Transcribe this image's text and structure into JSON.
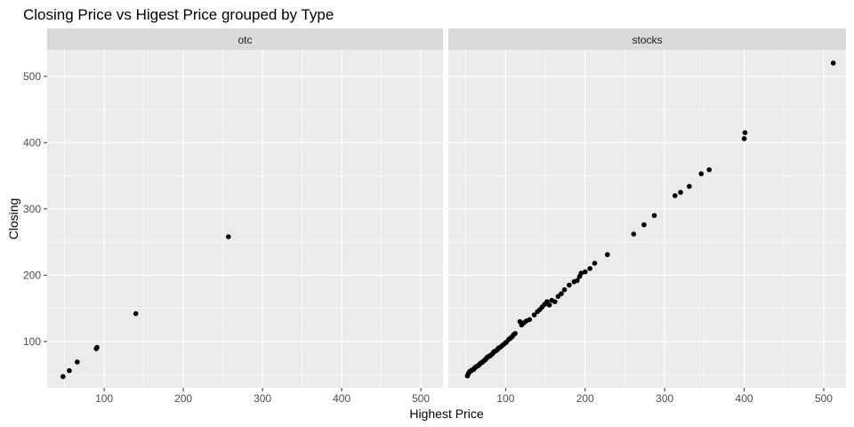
{
  "chart_data": {
    "type": "scatter",
    "title": "Closing Price  vs Higest Price grouped by Type",
    "xlabel": "Highest Price",
    "ylabel": "Closing",
    "xlim": [
      28,
      528
    ],
    "ylim": [
      30,
      540
    ],
    "x_ticks": [
      100,
      200,
      300,
      400,
      500
    ],
    "y_ticks": [
      100,
      200,
      300,
      400,
      500
    ],
    "grid": true,
    "facets": [
      {
        "name": "otc",
        "points": [
          [
            48,
            47
          ],
          [
            56,
            56
          ],
          [
            66,
            69
          ],
          [
            90,
            89
          ],
          [
            91,
            91
          ],
          [
            140,
            142
          ],
          [
            257,
            258
          ]
        ]
      },
      {
        "name": "stocks",
        "points": [
          [
            52,
            48
          ],
          [
            53,
            51
          ],
          [
            54,
            53
          ],
          [
            55,
            55
          ],
          [
            57,
            56
          ],
          [
            58,
            57
          ],
          [
            60,
            58
          ],
          [
            61,
            60
          ],
          [
            62,
            61
          ],
          [
            63,
            62
          ],
          [
            65,
            63
          ],
          [
            66,
            64
          ],
          [
            67,
            65
          ],
          [
            68,
            67
          ],
          [
            70,
            68
          ],
          [
            71,
            69
          ],
          [
            72,
            70
          ],
          [
            73,
            71
          ],
          [
            74,
            72
          ],
          [
            75,
            73
          ],
          [
            76,
            75
          ],
          [
            77,
            76
          ],
          [
            78,
            77
          ],
          [
            80,
            78
          ],
          [
            81,
            79
          ],
          [
            82,
            80
          ],
          [
            84,
            82
          ],
          [
            85,
            84
          ],
          [
            86,
            85
          ],
          [
            88,
            86
          ],
          [
            90,
            88
          ],
          [
            91,
            90
          ],
          [
            93,
            91
          ],
          [
            95,
            93
          ],
          [
            97,
            95
          ],
          [
            99,
            97
          ],
          [
            101,
            99
          ],
          [
            104,
            103
          ],
          [
            106,
            105
          ],
          [
            108,
            107
          ],
          [
            110,
            110
          ],
          [
            112,
            112
          ],
          [
            118,
            130
          ],
          [
            120,
            125
          ],
          [
            123,
            128
          ],
          [
            126,
            131
          ],
          [
            130,
            133
          ],
          [
            136,
            140
          ],
          [
            140,
            145
          ],
          [
            143,
            148
          ],
          [
            146,
            152
          ],
          [
            149,
            156
          ],
          [
            152,
            160
          ],
          [
            155,
            155
          ],
          [
            158,
            162
          ],
          [
            162,
            160
          ],
          [
            166,
            168
          ],
          [
            170,
            172
          ],
          [
            174,
            178
          ],
          [
            180,
            185
          ],
          [
            186,
            190
          ],
          [
            190,
            192
          ],
          [
            193,
            198
          ],
          [
            195,
            203
          ],
          [
            200,
            205
          ],
          [
            206,
            210
          ],
          [
            212,
            218
          ],
          [
            228,
            231
          ],
          [
            261,
            262
          ],
          [
            274,
            276
          ],
          [
            287,
            290
          ],
          [
            313,
            320
          ],
          [
            320,
            325
          ],
          [
            331,
            334
          ],
          [
            346,
            353
          ],
          [
            356,
            359
          ],
          [
            400,
            406
          ],
          [
            401,
            415
          ],
          [
            512,
            520
          ]
        ]
      }
    ]
  }
}
